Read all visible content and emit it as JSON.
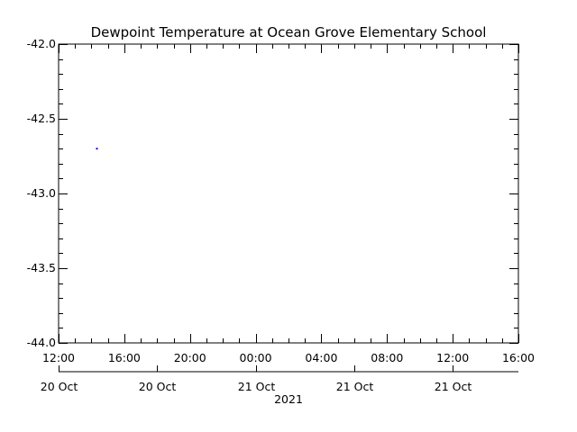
{
  "chart_data": {
    "type": "scatter",
    "title": "Dewpoint Temperature at Ocean Grove Elementary School",
    "ylabel": "",
    "xlabel": "2021",
    "ylim": [
      -44.0,
      -42.0
    ],
    "y_ticks": [
      "-42.0",
      "-42.5",
      "-43.0",
      "-43.5",
      "-44.0"
    ],
    "x_range": [
      "2021-10-20 12:00",
      "2021-10-21 16:00"
    ],
    "x_time_ticks": [
      "12:00",
      "16:00",
      "20:00",
      "00:00",
      "04:00",
      "08:00",
      "12:00",
      "16:00"
    ],
    "x_date_ticks": [
      "20 Oct",
      "20 Oct",
      "21 Oct",
      "21 Oct",
      "21 Oct"
    ],
    "grid": false,
    "point_color": "#0000ff",
    "series": [
      {
        "x": [
          "2021-10-20 14:20"
        ],
        "values": [
          -42.7
        ]
      }
    ]
  }
}
